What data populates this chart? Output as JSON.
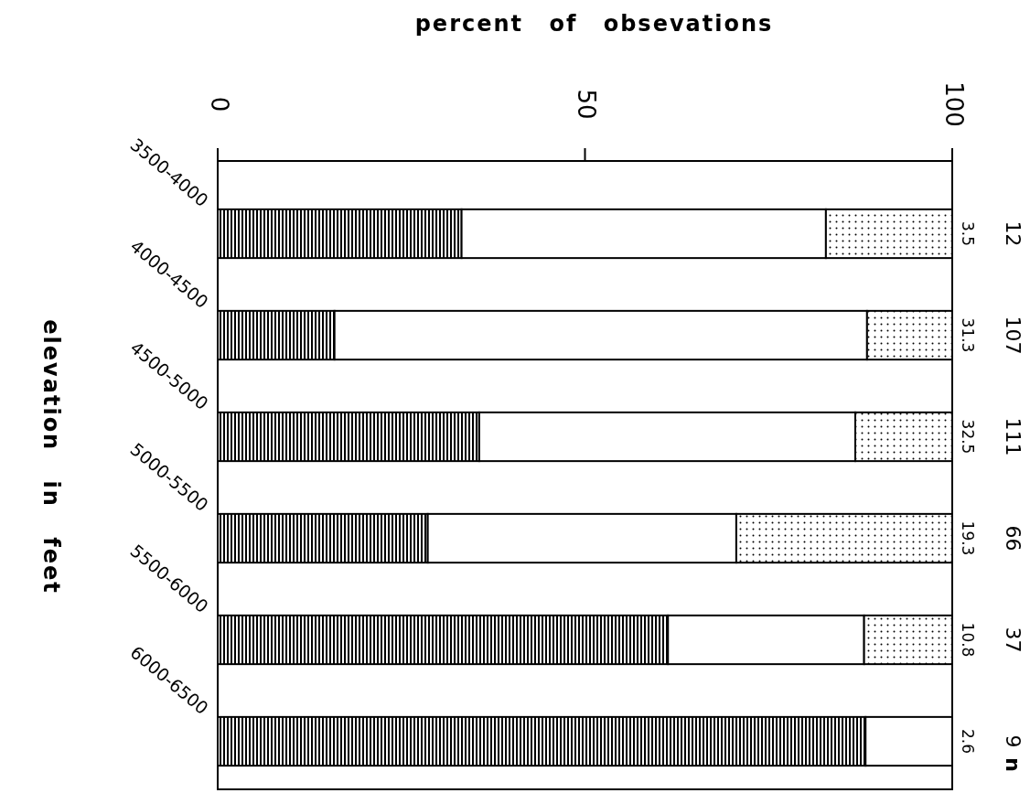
{
  "chart_data": {
    "type": "bar",
    "orientation": "horizontal",
    "stacked": true,
    "xlabel": "percent of obsevations",
    "ylabel": "elevation in feet",
    "categories": [
      "3500-4000",
      "4000-4500",
      "4500-5000",
      "5000-5500",
      "5500-6000",
      "6000-6500"
    ],
    "series": [
      {
        "color": "#000000",
        "values": [
          33.2,
          15.9,
          35.6,
          28.6,
          61.3,
          88.2
        ]
      },
      {
        "color": "#ffffff",
        "values": [
          49.6,
          72.5,
          51.2,
          42.0,
          26.7,
          11.8
        ]
      },
      {
        "color": "#000000",
        "values": [
          17.2,
          11.6,
          13.2,
          29.4,
          12.0,
          0
        ]
      }
    ],
    "xlim": [
      0,
      100
    ],
    "xticks": [
      0,
      50,
      100
    ],
    "grid": false,
    "annotations": [
      "3.5",
      "31.3",
      "32.5",
      "19.3",
      "10.8",
      "2.6",
      "12",
      "107",
      "111",
      "66",
      "37",
      "9",
      "n"
    ]
  }
}
